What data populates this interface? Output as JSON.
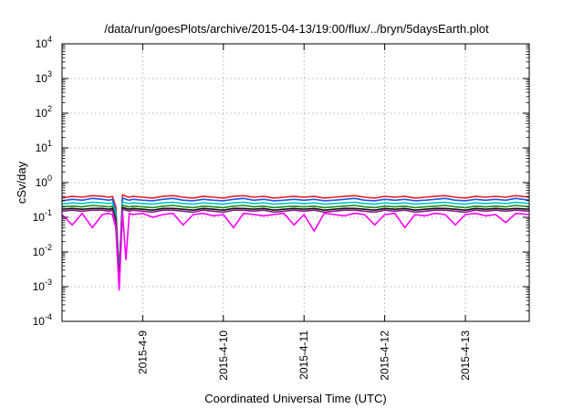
{
  "chart_data": {
    "type": "line",
    "title": "/data/run/goesPlots/archive/2015-04-13/19:00/flux/../bryn/5daysEarth.plot",
    "xlabel": "Coordinated Universal Time (UTC)",
    "ylabel": "cSv/day",
    "x_range": [
      "2015-04-08 00:00",
      "2015-04-13 19:00"
    ],
    "y_range": [
      0.0001,
      10000
    ],
    "y_scale": "log",
    "grid": true,
    "x_ticks": [
      {
        "date": "2015-04-09 00:00",
        "label": "2015-4-9"
      },
      {
        "date": "2015-04-10 00:00",
        "label": "2015-4-10"
      },
      {
        "date": "2015-04-11 00:00",
        "label": "2015-4-11"
      },
      {
        "date": "2015-04-12 00:00",
        "label": "2015-4-12"
      },
      {
        "date": "2015-04-13 00:00",
        "label": "2015-4-13"
      }
    ],
    "y_ticks": [
      {
        "value": 0.0001,
        "base": "10",
        "exp": "-4"
      },
      {
        "value": 0.001,
        "base": "10",
        "exp": "-3"
      },
      {
        "value": 0.01,
        "base": "10",
        "exp": "-2"
      },
      {
        "value": 0.1,
        "base": "10",
        "exp": "-1"
      },
      {
        "value": 1,
        "base": "10",
        "exp": "0"
      },
      {
        "value": 10,
        "base": "10",
        "exp": "1"
      },
      {
        "value": 100,
        "base": "10",
        "exp": "2"
      },
      {
        "value": 1000,
        "base": "10",
        "exp": "3"
      },
      {
        "value": 10000,
        "base": "10",
        "exp": "4"
      }
    ],
    "sample_times": [
      "2015-04-08 00:00",
      "2015-04-08 03:00",
      "2015-04-08 06:00",
      "2015-04-08 09:00",
      "2015-04-08 12:00",
      "2015-04-08 14:00",
      "2015-04-08 15:00",
      "2015-04-08 16:00",
      "2015-04-08 17:00",
      "2015-04-08 18:00",
      "2015-04-08 19:00",
      "2015-04-08 20:00",
      "2015-04-08 21:00",
      "2015-04-09 00:00",
      "2015-04-09 03:00",
      "2015-04-09 06:00",
      "2015-04-09 09:00",
      "2015-04-09 12:00",
      "2015-04-09 15:00",
      "2015-04-09 18:00",
      "2015-04-09 21:00",
      "2015-04-10 00:00",
      "2015-04-10 03:00",
      "2015-04-10 06:00",
      "2015-04-10 09:00",
      "2015-04-10 12:00",
      "2015-04-10 15:00",
      "2015-04-10 18:00",
      "2015-04-10 21:00",
      "2015-04-11 00:00",
      "2015-04-11 03:00",
      "2015-04-11 06:00",
      "2015-04-11 09:00",
      "2015-04-11 12:00",
      "2015-04-11 15:00",
      "2015-04-11 18:00",
      "2015-04-11 21:00",
      "2015-04-12 00:00",
      "2015-04-12 03:00",
      "2015-04-12 06:00",
      "2015-04-12 09:00",
      "2015-04-12 12:00",
      "2015-04-12 15:00",
      "2015-04-12 18:00",
      "2015-04-12 21:00",
      "2015-04-13 00:00",
      "2015-04-13 03:00",
      "2015-04-13 06:00",
      "2015-04-13 09:00",
      "2015-04-13 12:00",
      "2015-04-13 15:00",
      "2015-04-13 19:00"
    ],
    "series": [
      {
        "color": "#e8202a",
        "values": [
          0.36,
          0.4,
          0.38,
          0.42,
          0.4,
          0.38,
          0.4,
          0.2,
          0.0025,
          0.45,
          0.4,
          0.38,
          0.4,
          0.38,
          0.36,
          0.4,
          0.42,
          0.38,
          0.36,
          0.4,
          0.38,
          0.36,
          0.4,
          0.42,
          0.38,
          0.4,
          0.36,
          0.38,
          0.4,
          0.38,
          0.4,
          0.36,
          0.38,
          0.4,
          0.42,
          0.38,
          0.36,
          0.4,
          0.38,
          0.4,
          0.36,
          0.38,
          0.4,
          0.42,
          0.38,
          0.36,
          0.4,
          0.38,
          0.4,
          0.38,
          0.42,
          0.38
        ]
      },
      {
        "color": "#1a56e8",
        "values": [
          0.3,
          0.33,
          0.31,
          0.35,
          0.33,
          0.31,
          0.33,
          0.15,
          0.002,
          0.36,
          0.33,
          0.31,
          0.33,
          0.31,
          0.3,
          0.33,
          0.35,
          0.31,
          0.3,
          0.33,
          0.31,
          0.3,
          0.33,
          0.35,
          0.31,
          0.33,
          0.3,
          0.31,
          0.33,
          0.31,
          0.33,
          0.3,
          0.31,
          0.33,
          0.35,
          0.31,
          0.3,
          0.33,
          0.31,
          0.33,
          0.3,
          0.31,
          0.33,
          0.35,
          0.31,
          0.3,
          0.33,
          0.31,
          0.33,
          0.31,
          0.35,
          0.31
        ]
      },
      {
        "color": "#00c8c8",
        "values": [
          0.24,
          0.26,
          0.25,
          0.27,
          0.26,
          0.25,
          0.26,
          0.12,
          0.0018,
          0.28,
          0.26,
          0.25,
          0.26,
          0.25,
          0.24,
          0.26,
          0.27,
          0.25,
          0.24,
          0.26,
          0.25,
          0.24,
          0.26,
          0.27,
          0.25,
          0.26,
          0.24,
          0.25,
          0.26,
          0.25,
          0.26,
          0.24,
          0.25,
          0.26,
          0.27,
          0.25,
          0.24,
          0.26,
          0.25,
          0.26,
          0.24,
          0.25,
          0.26,
          0.27,
          0.25,
          0.24,
          0.26,
          0.25,
          0.26,
          0.25,
          0.27,
          0.25
        ]
      },
      {
        "color": "#1a8a1a",
        "values": [
          0.2,
          0.21,
          0.2,
          0.22,
          0.21,
          0.2,
          0.21,
          0.1,
          0.0015,
          0.22,
          0.21,
          0.2,
          0.21,
          0.2,
          0.19,
          0.21,
          0.22,
          0.2,
          0.19,
          0.21,
          0.2,
          0.19,
          0.21,
          0.22,
          0.2,
          0.21,
          0.19,
          0.2,
          0.21,
          0.2,
          0.21,
          0.19,
          0.2,
          0.21,
          0.22,
          0.2,
          0.19,
          0.21,
          0.2,
          0.21,
          0.19,
          0.2,
          0.21,
          0.22,
          0.2,
          0.19,
          0.21,
          0.2,
          0.21,
          0.2,
          0.22,
          0.2
        ]
      },
      {
        "color": "#111111",
        "values": [
          0.17,
          0.18,
          0.17,
          0.18,
          0.18,
          0.17,
          0.18,
          0.08,
          0.0012,
          0.19,
          0.18,
          0.17,
          0.18,
          0.17,
          0.16,
          0.18,
          0.18,
          0.17,
          0.16,
          0.18,
          0.17,
          0.16,
          0.18,
          0.18,
          0.17,
          0.18,
          0.16,
          0.17,
          0.18,
          0.17,
          0.18,
          0.16,
          0.17,
          0.18,
          0.18,
          0.17,
          0.16,
          0.18,
          0.17,
          0.18,
          0.16,
          0.17,
          0.18,
          0.18,
          0.17,
          0.16,
          0.18,
          0.17,
          0.18,
          0.17,
          0.18,
          0.17
        ]
      },
      {
        "color": "#8a1a8a",
        "values": [
          0.15,
          0.16,
          0.15,
          0.16,
          0.16,
          0.15,
          0.16,
          0.07,
          0.001,
          0.17,
          0.16,
          0.15,
          0.16,
          0.15,
          0.14,
          0.16,
          0.16,
          0.15,
          0.14,
          0.16,
          0.15,
          0.14,
          0.16,
          0.16,
          0.15,
          0.16,
          0.14,
          0.15,
          0.16,
          0.15,
          0.16,
          0.14,
          0.15,
          0.16,
          0.16,
          0.15,
          0.14,
          0.16,
          0.15,
          0.16,
          0.14,
          0.15,
          0.16,
          0.16,
          0.15,
          0.14,
          0.16,
          0.15,
          0.16,
          0.15,
          0.16,
          0.15
        ]
      },
      {
        "color": "#ff00ff",
        "values": [
          0.12,
          0.06,
          0.13,
          0.05,
          0.12,
          0.13,
          0.12,
          0.05,
          0.0008,
          0.14,
          0.006,
          0.13,
          0.12,
          0.13,
          0.1,
          0.12,
          0.13,
          0.06,
          0.12,
          0.13,
          0.11,
          0.12,
          0.05,
          0.13,
          0.12,
          0.11,
          0.12,
          0.13,
          0.06,
          0.12,
          0.04,
          0.13,
          0.12,
          0.11,
          0.13,
          0.12,
          0.06,
          0.12,
          0.13,
          0.05,
          0.12,
          0.11,
          0.13,
          0.12,
          0.06,
          0.12,
          0.13,
          0.11,
          0.12,
          0.07,
          0.13,
          0.12
        ]
      }
    ]
  }
}
